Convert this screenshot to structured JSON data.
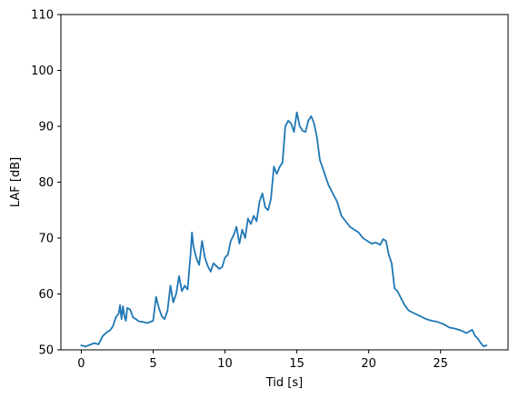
{
  "chart_data": {
    "type": "line",
    "title": "",
    "xlabel": "Tid [s]",
    "ylabel": "LAF [dB]",
    "xlim": [
      -1.42,
      29.7
    ],
    "ylim": [
      50,
      110
    ],
    "xticks": [
      0,
      5,
      10,
      15,
      20,
      25
    ],
    "yticks": [
      50,
      60,
      70,
      80,
      90,
      100,
      110
    ],
    "grid": false,
    "legend": "none",
    "series": [
      {
        "color": "#1f77b4",
        "x": [
          0.0,
          0.3,
          0.6,
          0.9,
          1.2,
          1.5,
          1.8,
          2.0,
          2.2,
          2.4,
          2.6,
          2.7,
          2.8,
          2.9,
          3.0,
          3.1,
          3.2,
          3.4,
          3.6,
          3.8,
          4.0,
          4.3,
          4.6,
          5.0,
          5.2,
          5.4,
          5.6,
          5.8,
          6.0,
          6.2,
          6.4,
          6.6,
          6.8,
          7.0,
          7.2,
          7.4,
          7.6,
          7.7,
          7.8,
          8.0,
          8.2,
          8.4,
          8.6,
          8.8,
          9.0,
          9.2,
          9.4,
          9.6,
          9.8,
          10.0,
          10.2,
          10.4,
          10.6,
          10.8,
          11.0,
          11.2,
          11.4,
          11.6,
          11.8,
          12.0,
          12.2,
          12.4,
          12.6,
          12.8,
          13.0,
          13.2,
          13.4,
          13.6,
          13.8,
          14.0,
          14.2,
          14.4,
          14.6,
          14.8,
          15.0,
          15.2,
          15.4,
          15.6,
          15.8,
          16.0,
          16.2,
          16.4,
          16.6,
          16.8,
          17.0,
          17.2,
          17.5,
          17.8,
          18.1,
          18.4,
          18.7,
          19.0,
          19.3,
          19.6,
          19.9,
          20.2,
          20.5,
          20.8,
          21.0,
          21.2,
          21.4,
          21.6,
          21.8,
          22.0,
          22.2,
          22.5,
          22.8,
          23.2,
          23.6,
          24.0,
          24.4,
          24.8,
          25.2,
          25.6,
          26.0,
          26.4,
          26.8,
          27.2,
          27.4,
          27.6,
          27.8,
          28.0,
          28.2
        ],
        "y": [
          50.8,
          50.6,
          50.9,
          51.2,
          51.0,
          52.5,
          53.2,
          53.5,
          54.2,
          55.8,
          56.5,
          58.0,
          55.5,
          57.8,
          56.0,
          55.2,
          57.5,
          57.2,
          55.8,
          55.5,
          55.1,
          55.0,
          54.8,
          55.2,
          59.5,
          57.5,
          56.0,
          55.5,
          57.0,
          61.5,
          58.5,
          60.0,
          63.2,
          60.5,
          61.5,
          60.8,
          67.0,
          71.0,
          68.5,
          66.5,
          65.2,
          69.5,
          66.5,
          65.0,
          64.0,
          65.5,
          65.0,
          64.5,
          64.8,
          66.5,
          67.0,
          69.5,
          70.5,
          72.0,
          69.0,
          71.5,
          70.0,
          73.5,
          72.5,
          74.0,
          73.0,
          76.5,
          78.0,
          75.5,
          75.0,
          77.0,
          82.8,
          81.5,
          82.7,
          83.5,
          90.0,
          91.0,
          90.5,
          89.0,
          92.5,
          90.0,
          89.2,
          89.0,
          91.0,
          91.8,
          90.5,
          88.0,
          84.0,
          82.5,
          81.0,
          79.5,
          78.0,
          76.5,
          74.0,
          73.0,
          72.0,
          71.5,
          71.0,
          70.0,
          69.5,
          69.0,
          69.2,
          68.8,
          69.8,
          69.5,
          67.0,
          65.5,
          61.0,
          60.5,
          59.5,
          58.0,
          57.0,
          56.5,
          56.0,
          55.5,
          55.2,
          55.0,
          54.6,
          54.0,
          53.8,
          53.5,
          53.0,
          53.6,
          52.5,
          52.0,
          51.2,
          50.6,
          50.8
        ]
      }
    ]
  }
}
